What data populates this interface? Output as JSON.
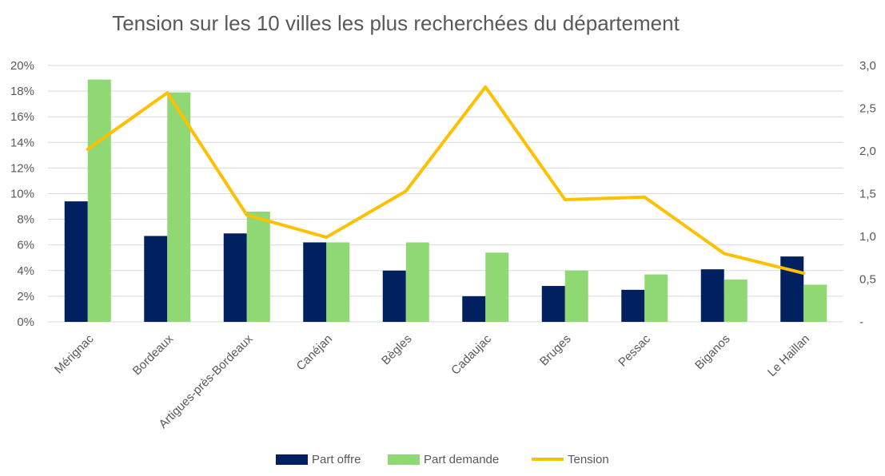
{
  "chart_data": {
    "type": "bar",
    "title": "Tension sur les 10 villes les plus recherchées du département",
    "categories": [
      "Mérignac",
      "Bordeaux",
      "Artigues-près-Bordeaux",
      "Canéjan",
      "Bègles",
      "Cadaujac",
      "Bruges",
      "Pessac",
      "Biganos",
      "Le Haillan"
    ],
    "series": [
      {
        "name": "Part offre",
        "type": "bar",
        "axis": "left",
        "color": "#002060",
        "values": [
          9.4,
          6.7,
          6.9,
          6.2,
          4.0,
          2.0,
          2.8,
          2.5,
          4.1,
          5.1
        ]
      },
      {
        "name": "Part demande",
        "type": "bar",
        "axis": "left",
        "color": "#8fd873",
        "values": [
          18.9,
          17.9,
          8.6,
          6.2,
          6.2,
          5.4,
          4.0,
          3.7,
          3.3,
          2.9
        ]
      },
      {
        "name": "Tension",
        "type": "line",
        "axis": "right",
        "color": "#ffc000",
        "values": [
          2.02,
          2.68,
          1.25,
          0.99,
          1.53,
          2.75,
          1.43,
          1.46,
          0.8,
          0.57
        ]
      }
    ],
    "y_left": {
      "min": 0,
      "max": 20,
      "step": 2,
      "tick_labels": [
        "0%",
        "2%",
        "4%",
        "6%",
        "8%",
        "10%",
        "12%",
        "14%",
        "16%",
        "18%",
        "20%"
      ]
    },
    "y_right": {
      "min": 0,
      "max": 3.0,
      "step": 0.5,
      "tick_labels": [
        "-",
        "0,5",
        "1,0",
        "1,5",
        "2,0",
        "2,5",
        "3,0"
      ]
    },
    "grid": true,
    "legend_position": "bottom"
  }
}
